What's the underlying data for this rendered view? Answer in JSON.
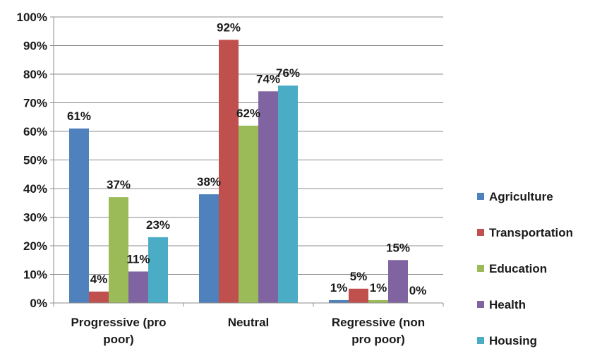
{
  "chart_data": {
    "type": "bar",
    "categories": [
      [
        "Progressive (pro",
        "poor)"
      ],
      [
        "Neutral"
      ],
      [
        "Regressive (non",
        "pro poor)"
      ]
    ],
    "series": [
      {
        "name": "Agriculture",
        "color": "#4f81bd",
        "values": [
          61,
          38,
          1
        ],
        "labels": [
          "61%",
          "38%",
          "1%"
        ]
      },
      {
        "name": "Transportation",
        "color": "#c0504d",
        "values": [
          4,
          92,
          5
        ],
        "labels": [
          "4%",
          "92%",
          "5%"
        ]
      },
      {
        "name": "Education",
        "color": "#9bbb59",
        "values": [
          37,
          62,
          1
        ],
        "labels": [
          "37%",
          "62%",
          "1%"
        ]
      },
      {
        "name": "Health",
        "color": "#8064a2",
        "values": [
          11,
          74,
          15
        ],
        "labels": [
          "11%",
          "74%",
          "15%"
        ]
      },
      {
        "name": "Housing",
        "color": "#4bacc6",
        "values": [
          23,
          76,
          0
        ],
        "labels": [
          "23%",
          "76%",
          "0%"
        ]
      }
    ],
    "yticks": [
      "0%",
      "10%",
      "20%",
      "30%",
      "40%",
      "50%",
      "60%",
      "70%",
      "80%",
      "90%",
      "100%"
    ],
    "ylim": [
      0,
      100
    ],
    "grid": true,
    "legend": "right",
    "title": "",
    "xlabel": "",
    "ylabel": ""
  }
}
